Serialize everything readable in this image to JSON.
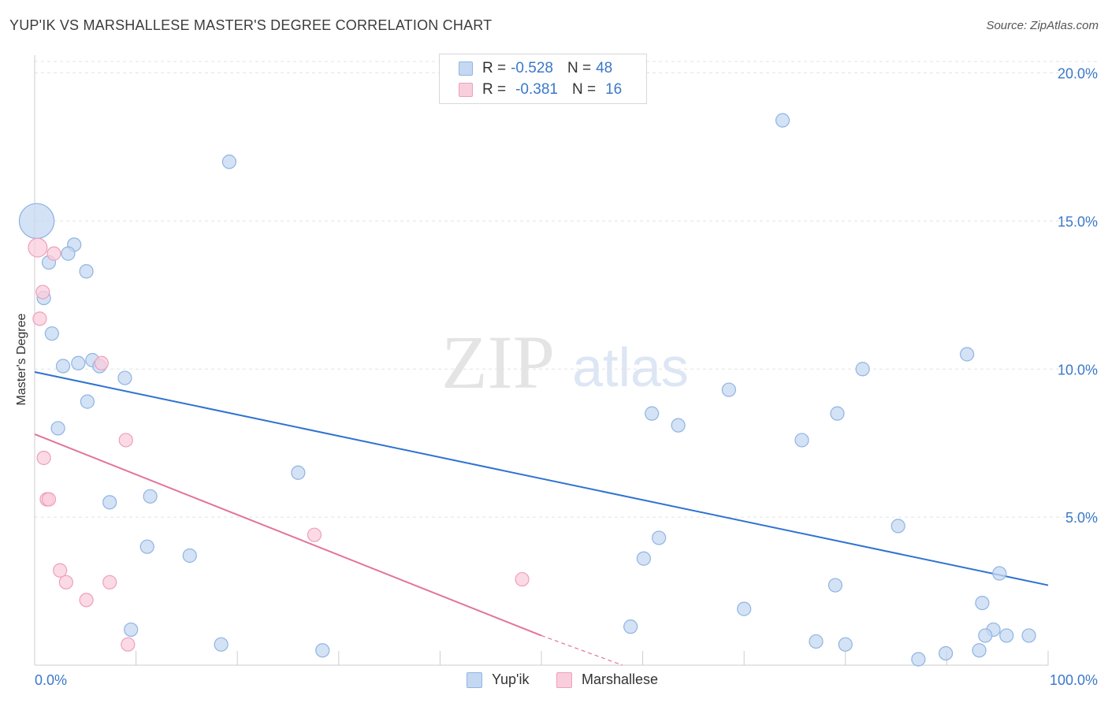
{
  "header": {
    "title": "YUP'IK VS MARSHALLESE MASTER'S DEGREE CORRELATION CHART",
    "source": "Source: ZipAtlas.com"
  },
  "watermark": {
    "zip": "ZIP",
    "atlas": "atlas"
  },
  "colors": {
    "blue_fill": "#c5d8f2",
    "blue_stroke": "#8fb4e3",
    "blue_line": "#2f72d1",
    "pink_fill": "#f9cedc",
    "pink_stroke": "#ee9fba",
    "pink_line": "#e3739a",
    "tick_label": "#3a78c8",
    "grid": "#e3e3e3"
  },
  "legend": {
    "rows": [
      {
        "r_label": "R =",
        "r_value": "-0.528",
        "n_label": "N =",
        "n_value": "48"
      },
      {
        "r_label": "R =",
        "r_value": "-0.381",
        "n_label": "N =",
        "n_value": "16"
      }
    ]
  },
  "chart_data": {
    "type": "scatter",
    "title": "YUP'IK VS MARSHALLESE MASTER'S DEGREE CORRELATION CHART",
    "xlabel": "",
    "ylabel": "Master's Degree",
    "xlim": [
      0,
      100
    ],
    "ylim": [
      0,
      20.6
    ],
    "x_tick_labels": [
      "0.0%",
      "100.0%"
    ],
    "y_ticks": [
      5,
      10,
      15,
      20
    ],
    "y_tick_labels": [
      "5.0%",
      "10.0%",
      "15.0%",
      "20.0%"
    ],
    "grid": true,
    "legend_position": "bottom-center",
    "series": [
      {
        "name": "Yup'ik",
        "R": -0.528,
        "N": 48,
        "trend": {
          "x0": 0,
          "y0": 9.9,
          "x1": 100,
          "y1": 2.7
        },
        "points": [
          [
            0.2,
            15.0,
            2.6
          ],
          [
            19.2,
            17.0,
            1
          ],
          [
            73.8,
            18.4,
            1
          ],
          [
            3.9,
            14.2,
            1
          ],
          [
            3.3,
            13.9,
            1
          ],
          [
            1.4,
            13.6,
            1
          ],
          [
            5.1,
            13.3,
            1
          ],
          [
            0.9,
            12.4,
            1
          ],
          [
            1.7,
            11.2,
            1
          ],
          [
            2.8,
            10.1,
            1
          ],
          [
            4.3,
            10.2,
            1
          ],
          [
            5.7,
            10.3,
            1
          ],
          [
            6.4,
            10.1,
            1
          ],
          [
            8.9,
            9.7,
            1
          ],
          [
            5.2,
            8.9,
            1
          ],
          [
            2.3,
            8.0,
            1
          ],
          [
            92.0,
            10.5,
            1
          ],
          [
            81.7,
            10.0,
            1
          ],
          [
            68.5,
            9.3,
            1
          ],
          [
            79.2,
            8.5,
            1
          ],
          [
            60.9,
            8.5,
            1
          ],
          [
            63.5,
            8.1,
            1
          ],
          [
            75.7,
            7.6,
            1
          ],
          [
            26.0,
            6.5,
            1
          ],
          [
            11.4,
            5.7,
            1
          ],
          [
            7.4,
            5.5,
            1
          ],
          [
            11.1,
            4.0,
            1
          ],
          [
            15.3,
            3.7,
            1
          ],
          [
            61.6,
            4.3,
            1
          ],
          [
            60.1,
            3.6,
            1
          ],
          [
            85.2,
            4.7,
            1
          ],
          [
            95.2,
            3.1,
            1
          ],
          [
            79.0,
            2.7,
            1
          ],
          [
            93.5,
            2.1,
            1
          ],
          [
            70.0,
            1.9,
            1
          ],
          [
            58.8,
            1.3,
            1
          ],
          [
            9.5,
            1.2,
            1
          ],
          [
            18.4,
            0.7,
            1
          ],
          [
            28.4,
            0.5,
            1
          ],
          [
            77.1,
            0.8,
            1
          ],
          [
            80.0,
            0.7,
            1
          ],
          [
            87.2,
            0.2,
            1
          ],
          [
            89.9,
            0.4,
            1
          ],
          [
            93.2,
            0.5,
            1
          ],
          [
            94.6,
            1.2,
            1
          ],
          [
            93.8,
            1.0,
            1
          ],
          [
            95.9,
            1.0,
            1
          ],
          [
            98.1,
            1.0,
            1
          ]
        ]
      },
      {
        "name": "Marshallese",
        "R": -0.381,
        "N": 16,
        "trend": {
          "x0": 0,
          "y0": 7.8,
          "x1": 50,
          "y1": 1.0
        },
        "trend_dashed": {
          "x0": 50,
          "y0": 1.0,
          "x1": 58,
          "y1": 0.0
        },
        "points": [
          [
            0.3,
            14.1,
            1.4
          ],
          [
            1.9,
            13.9,
            1
          ],
          [
            0.8,
            12.6,
            1
          ],
          [
            0.5,
            11.7,
            1
          ],
          [
            6.6,
            10.2,
            1
          ],
          [
            9.0,
            7.6,
            1
          ],
          [
            0.9,
            7.0,
            1
          ],
          [
            1.2,
            5.6,
            1
          ],
          [
            1.4,
            5.6,
            1
          ],
          [
            27.6,
            4.4,
            1
          ],
          [
            2.5,
            3.2,
            1
          ],
          [
            3.1,
            2.8,
            1
          ],
          [
            7.4,
            2.8,
            1
          ],
          [
            48.1,
            2.9,
            1
          ],
          [
            5.1,
            2.2,
            1
          ],
          [
            9.2,
            0.7,
            1
          ]
        ]
      }
    ]
  },
  "bottom_legend": [
    {
      "label": "Yup'ik"
    },
    {
      "label": "Marshallese"
    }
  ]
}
